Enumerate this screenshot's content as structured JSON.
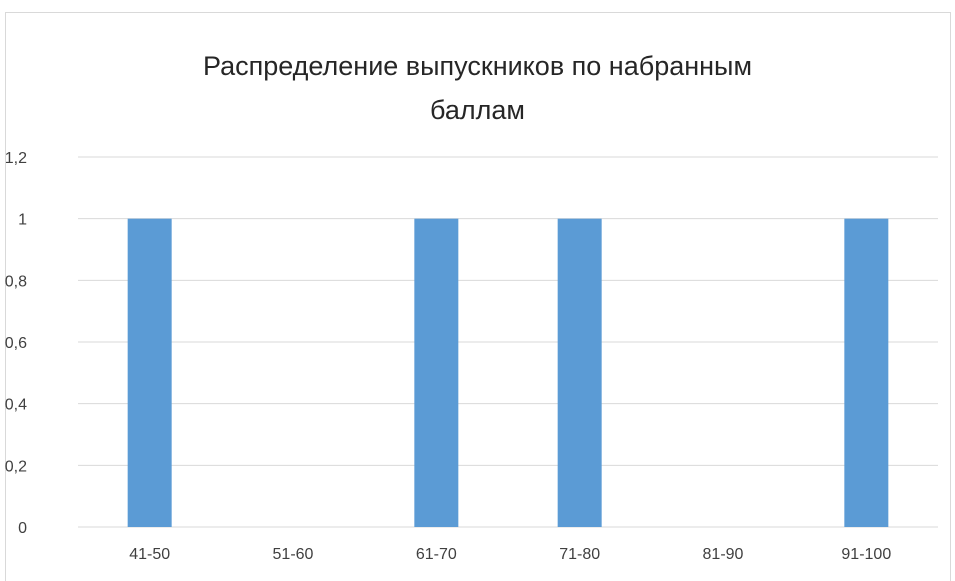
{
  "chart_data": {
    "type": "bar",
    "title_lines": [
      "Распределение выпускников по набранным",
      "баллам"
    ],
    "categories": [
      "41-50",
      "51-60",
      "61-70",
      "71-80",
      "81-90",
      "91-100"
    ],
    "values": [
      1,
      0,
      1,
      1,
      0,
      1
    ],
    "y_ticks": [
      "0",
      "0,2",
      "0,4",
      "0,6",
      "0,8",
      "1",
      "1,2"
    ],
    "ylim": [
      0,
      1.2
    ],
    "grid": true,
    "legend": "none",
    "bar_color": "#5b9bd5",
    "grid_color": "#d9d9d9"
  }
}
